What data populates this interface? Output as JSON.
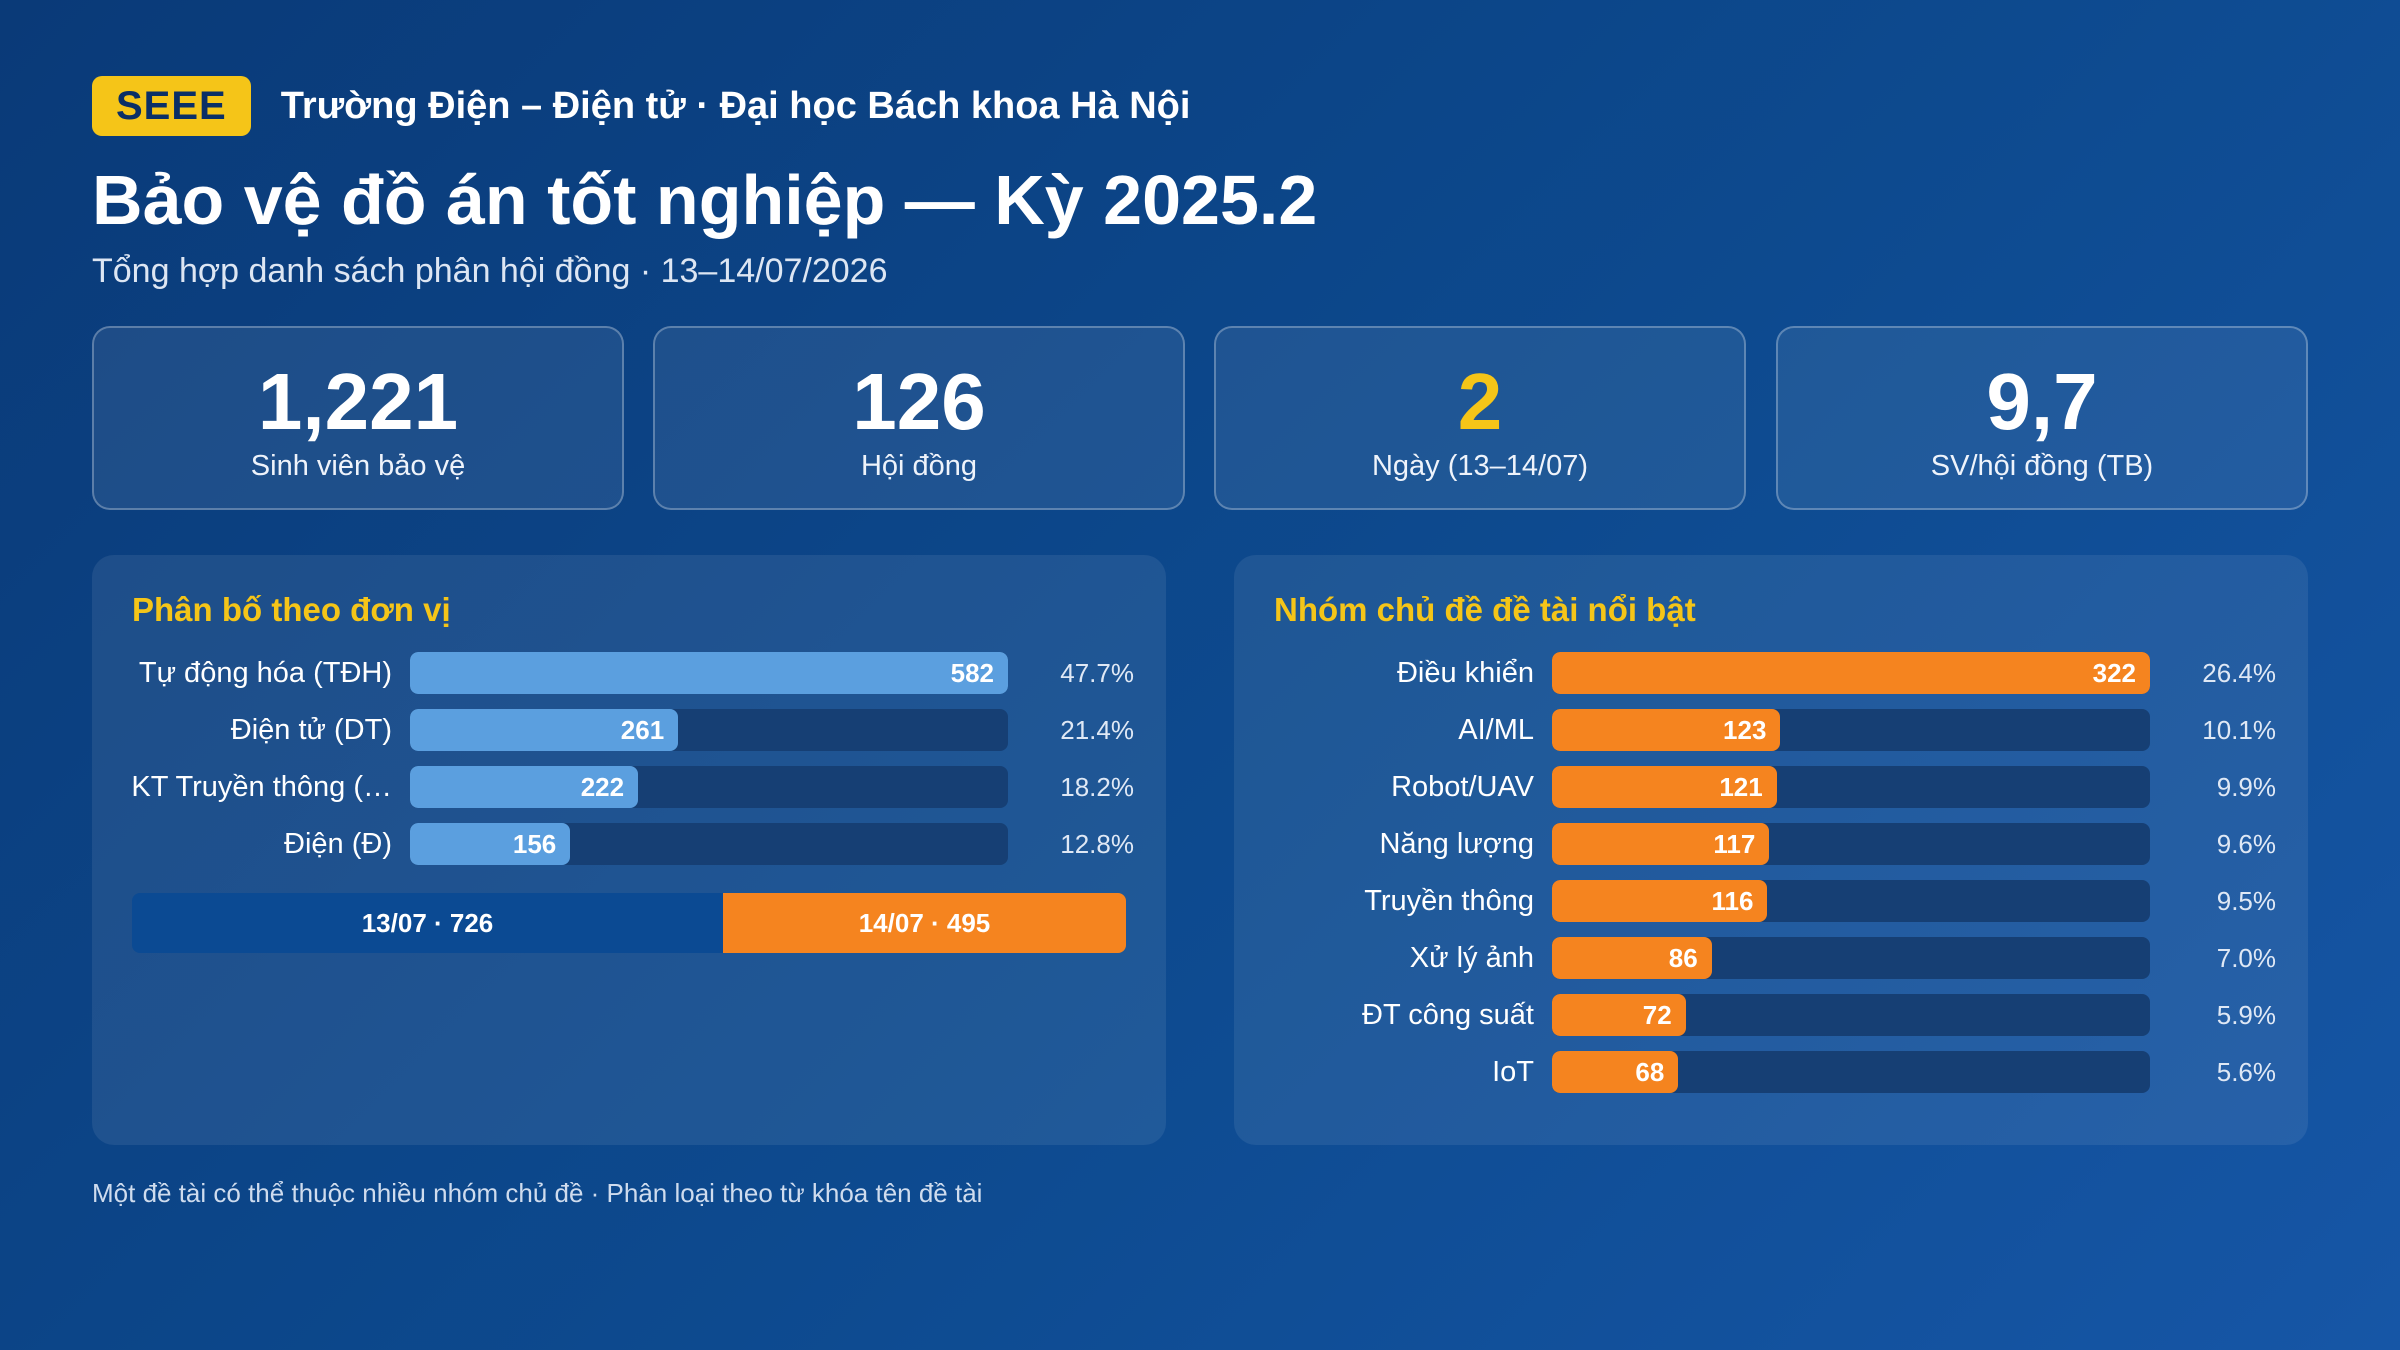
{
  "header": {
    "badge": "SEEE",
    "school": "Trường Điện – Điện tử · Đại học Bách khoa Hà Nội",
    "title": "Bảo vệ đồ án tốt nghiệp — Kỳ 2025.2",
    "subtitle": "Tổng hợp danh sách phân hội đồng · 13–14/07/2026"
  },
  "stats": [
    {
      "value": "1,221",
      "label": "Sinh viên bảo vệ",
      "color": "#ffffff"
    },
    {
      "value": "126",
      "label": "Hội đồng",
      "color": "#ffffff"
    },
    {
      "value": "2",
      "label": "Ngày (13–14/07)",
      "color": "#f5c518"
    },
    {
      "value": "9,7",
      "label": "SV/hội đồng (TB)",
      "color": "#ffffff"
    }
  ],
  "chart_data": [
    {
      "type": "bar",
      "title": "Phân bố theo đơn vị",
      "categories": [
        "Tự động hóa (TĐH)",
        "Điện tử (DT)",
        "KT Truyền thông (…",
        "Điện (Đ)"
      ],
      "values": [
        582,
        261,
        222,
        156
      ],
      "percents": [
        "47.7%",
        "21.4%",
        "18.2%",
        "12.8%"
      ],
      "xlim": [
        0,
        582
      ],
      "bar_color": "#5b9fdf",
      "day_split": [
        {
          "label": "13/07 · 726",
          "value": 726,
          "color": "#0b4a93"
        },
        {
          "label": "14/07 · 495",
          "value": 495,
          "color": "#f5841f"
        }
      ]
    },
    {
      "type": "bar",
      "title": "Nhóm chủ đề đề tài nổi bật",
      "categories": [
        "Điều khiển",
        "AI/ML",
        "Robot/UAV",
        "Năng lượng",
        "Truyền thông",
        "Xử lý ảnh",
        "ĐT công suất",
        "IoT"
      ],
      "values": [
        322,
        123,
        121,
        117,
        116,
        86,
        72,
        68
      ],
      "percents": [
        "26.4%",
        "10.1%",
        "9.9%",
        "9.6%",
        "9.5%",
        "7.0%",
        "5.9%",
        "5.6%"
      ],
      "xlim": [
        0,
        322
      ],
      "bar_color": "#f5841f"
    }
  ],
  "footnote": "Một đề tài có thể thuộc nhiều nhóm chủ đề · Phân loại theo từ khóa tên đề tài"
}
